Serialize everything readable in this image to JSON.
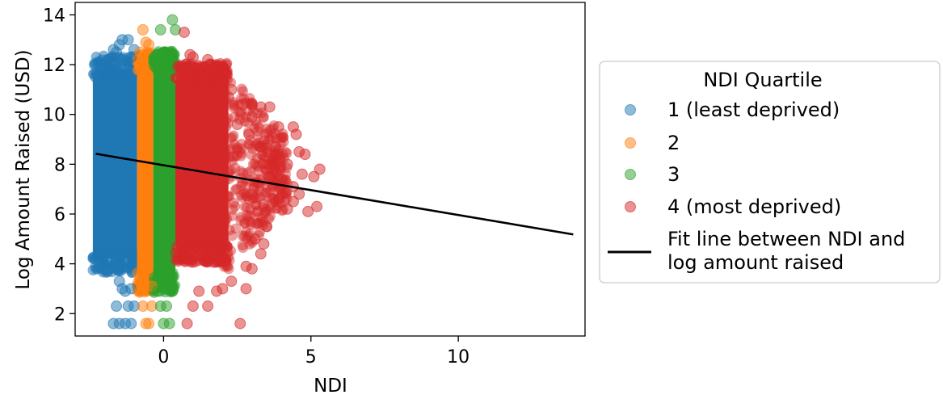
{
  "chart_data": {
    "type": "scatter",
    "title": "",
    "xlabel": "NDI",
    "ylabel": "Log Amount Raised (USD)",
    "xlim": [
      -3.0,
      14.3
    ],
    "ylim": [
      1.1,
      14.5
    ],
    "xticks": [
      0,
      5,
      10
    ],
    "yticks": [
      2,
      4,
      6,
      8,
      10,
      12,
      14
    ],
    "grid": false,
    "legend": {
      "title": "NDI Quartile",
      "placement": "right-outside",
      "entries": [
        "1 (least deprived)",
        "2",
        "3",
        "4 (most deprived)",
        "Fit line between NDI and log amount raised"
      ]
    },
    "series": [
      {
        "name": "1 (least deprived)",
        "color": "#1f77b4",
        "band": [
          -2.4,
          -0.9
        ],
        "points": [
          [
            -2.2,
            3.9
          ],
          [
            -1.9,
            3.7
          ],
          [
            -1.6,
            3.9
          ],
          [
            -1.5,
            3.3
          ],
          [
            -1.4,
            3.0
          ],
          [
            -1.3,
            2.9
          ],
          [
            -1.1,
            3.0
          ],
          [
            -1.6,
            2.3
          ],
          [
            -1.2,
            2.3
          ],
          [
            -1.5,
            1.6
          ],
          [
            -1.7,
            1.6
          ],
          [
            -1.1,
            1.6
          ],
          [
            -1.3,
            1.6
          ],
          [
            -1.0,
            2.3
          ],
          [
            -1.9,
            12.2
          ],
          [
            -1.6,
            12.5
          ],
          [
            -1.4,
            13.0
          ],
          [
            -1.2,
            13.0
          ],
          [
            -1.0,
            12.6
          ],
          [
            -1.1,
            12.3
          ],
          [
            -2.1,
            12.0
          ],
          [
            -1.7,
            12.6
          ],
          [
            -1.5,
            12.8
          ],
          [
            -2.3,
            11.5
          ],
          [
            -1.4,
            12.2
          ]
        ]
      },
      {
        "name": "2",
        "color": "#ff7f0e",
        "band": [
          -0.9,
          -0.35
        ],
        "points": [
          [
            -0.7,
            13.4
          ],
          [
            -0.6,
            12.9
          ],
          [
            -0.5,
            12.8
          ],
          [
            -0.8,
            12.5
          ],
          [
            -0.7,
            2.3
          ],
          [
            -0.5,
            1.6
          ],
          [
            -0.4,
            2.3
          ],
          [
            -0.6,
            1.6
          ],
          [
            -0.8,
            2.9
          ],
          [
            -0.4,
            3.1
          ]
        ]
      },
      {
        "name": "3",
        "color": "#2ca02c",
        "band": [
          -0.35,
          0.4
        ],
        "points": [
          [
            0.3,
            13.8
          ],
          [
            -0.1,
            13.4
          ],
          [
            0.4,
            13.4
          ],
          [
            0.0,
            12.5
          ],
          [
            0.2,
            12.3
          ],
          [
            -0.1,
            2.3
          ],
          [
            0.1,
            2.3
          ],
          [
            0.2,
            1.6
          ],
          [
            0.0,
            1.6
          ],
          [
            0.3,
            2.9
          ],
          [
            -0.2,
            2.9
          ]
        ]
      },
      {
        "name": "4 (most deprived)",
        "color": "#d62728",
        "band": [
          0.4,
          2.2
        ],
        "points": [
          [
            0.7,
            13.3
          ],
          [
            0.9,
            12.4
          ],
          [
            1.0,
            12.3
          ],
          [
            1.5,
            12.2
          ],
          [
            1.6,
            12.0
          ],
          [
            2.0,
            11.3
          ],
          [
            1.6,
            11.8
          ],
          [
            1.3,
            11.6
          ],
          [
            2.3,
            11.0
          ],
          [
            2.2,
            10.7
          ],
          [
            2.7,
            10.4
          ],
          [
            3.0,
            10.4
          ],
          [
            3.3,
            10.3
          ],
          [
            3.6,
            10.3
          ],
          [
            3.0,
            9.9
          ],
          [
            2.5,
            9.6
          ],
          [
            2.9,
            9.2
          ],
          [
            3.3,
            8.7
          ],
          [
            3.8,
            8.7
          ],
          [
            4.2,
            8.0
          ],
          [
            4.6,
            8.5
          ],
          [
            4.8,
            8.4
          ],
          [
            4.5,
            9.2
          ],
          [
            4.4,
            9.5
          ],
          [
            3.9,
            9.5
          ],
          [
            3.7,
            9.1
          ],
          [
            4.0,
            7.4
          ],
          [
            4.4,
            7.1
          ],
          [
            4.6,
            6.8
          ],
          [
            5.1,
            7.5
          ],
          [
            5.3,
            7.8
          ],
          [
            5.2,
            6.3
          ],
          [
            4.9,
            6.1
          ],
          [
            4.4,
            6.5
          ],
          [
            3.9,
            6.6
          ],
          [
            3.4,
            6.4
          ],
          [
            3.5,
            5.5
          ],
          [
            3.4,
            4.8
          ],
          [
            3.3,
            4.4
          ],
          [
            3.1,
            5.0
          ],
          [
            3.0,
            3.8
          ],
          [
            2.8,
            3.9
          ],
          [
            2.8,
            3.0
          ],
          [
            2.3,
            3.3
          ],
          [
            2.0,
            3.0
          ],
          [
            1.8,
            2.9
          ],
          [
            1.2,
            2.9
          ],
          [
            1.5,
            2.3
          ],
          [
            1.0,
            2.3
          ],
          [
            0.8,
            1.6
          ],
          [
            2.6,
            1.6
          ],
          [
            3.0,
            6.8
          ],
          [
            3.6,
            7.5
          ],
          [
            4.2,
            6.2
          ],
          [
            4.7,
            7.6
          ]
        ]
      }
    ],
    "fit_line": {
      "name": "Fit line between NDI and log amount raised",
      "color": "#000000",
      "x": [
        -2.3,
        13.9
      ],
      "y": [
        8.42,
        5.18
      ]
    }
  }
}
